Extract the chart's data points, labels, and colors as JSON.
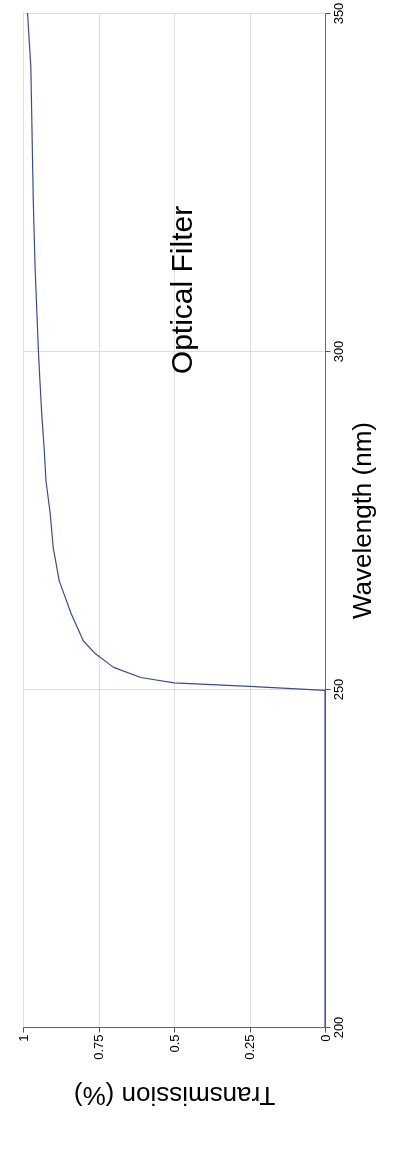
{
  "chart_data": {
    "type": "line",
    "title": "Optical Filter",
    "xlabel": "Transmission (%)",
    "ylabel": "Wavelength (nm)",
    "x": [
      0,
      0,
      0,
      0.25,
      0.5,
      0.61,
      0.7,
      0.76,
      0.8,
      0.84,
      0.88,
      0.9,
      0.91,
      0.924,
      0.93,
      0.938,
      0.944,
      0.949,
      0.96,
      0.966,
      0.97,
      0.974,
      0.985
    ],
    "series": [
      {
        "color": "#3a4a9a",
        "values": [
          200,
          230,
          249.8,
          250.4,
          250.9,
          251.7,
          253.2,
          255.2,
          257.1,
          261.1,
          266,
          270.9,
          276,
          280.8,
          285.7,
          290.7,
          295.6,
          300,
          312.4,
          322.3,
          332.2,
          342,
          350
        ]
      }
    ],
    "xlim": [
      1,
      0
    ],
    "xticks": [
      0,
      0.25,
      0.5,
      0.75,
      1
    ],
    "ylim": [
      200,
      350
    ],
    "yticks": [
      200,
      250,
      300,
      350
    ],
    "grid": true,
    "marker": "none",
    "line_style": "solid"
  }
}
